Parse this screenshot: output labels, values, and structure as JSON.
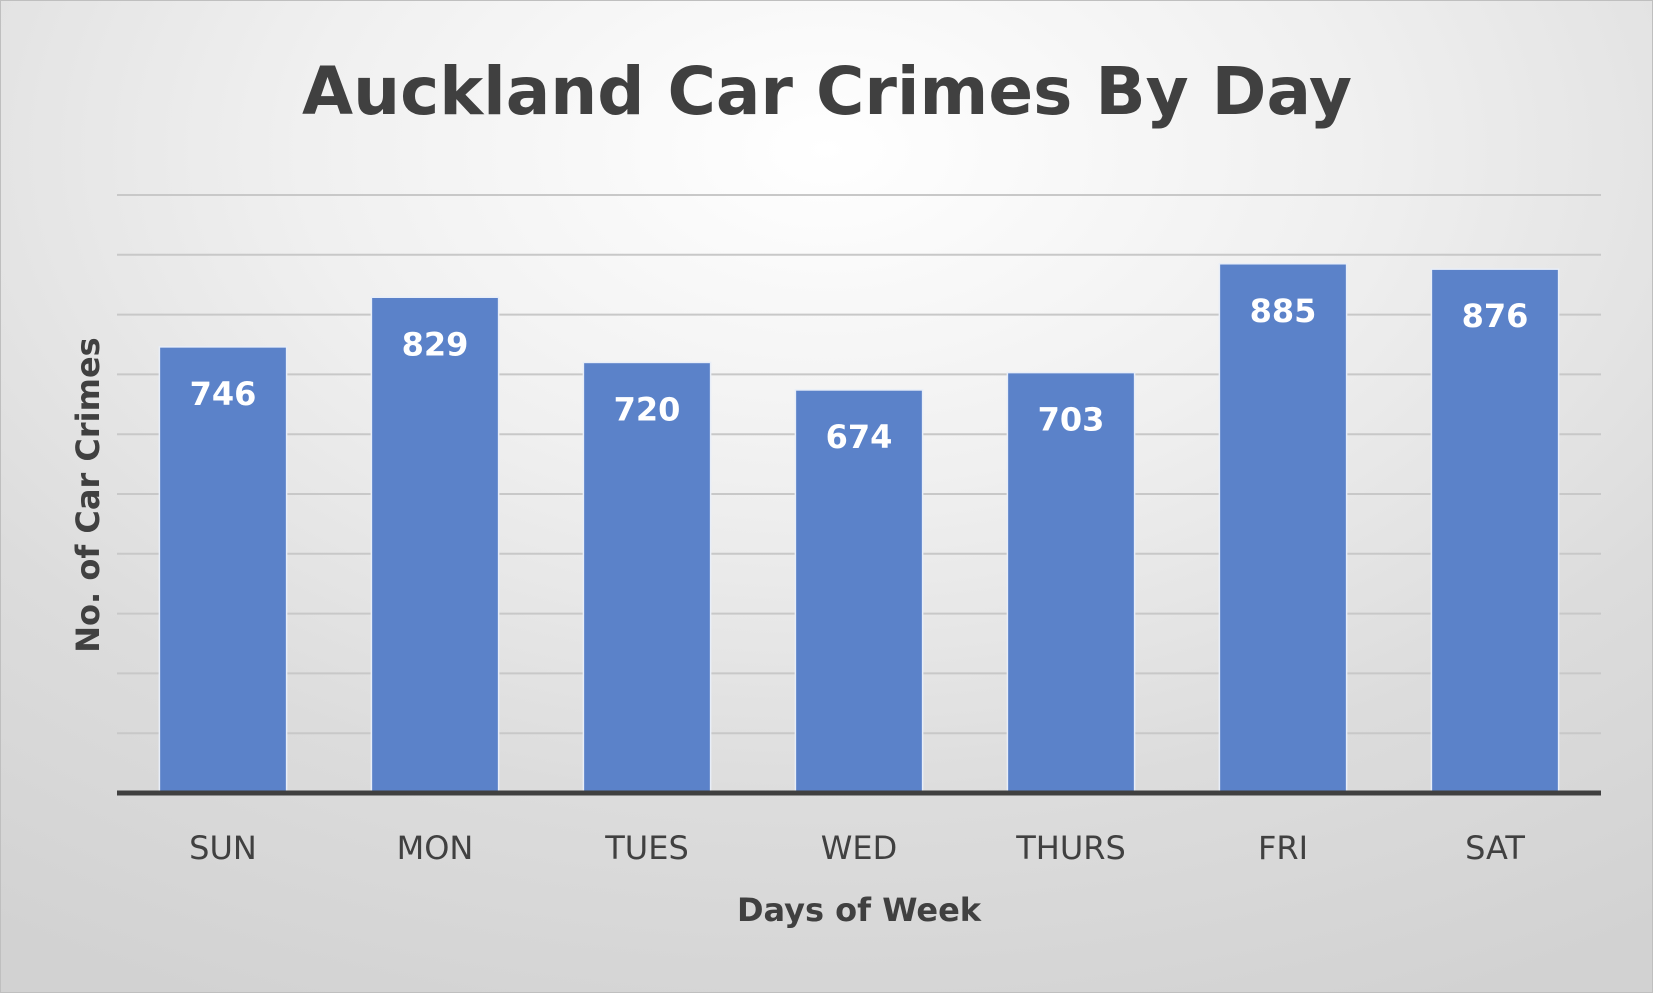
{
  "chart_data": {
    "type": "bar",
    "title": "Auckland Car Crimes By Day",
    "xlabel": "Days of Week",
    "ylabel": "No. of Car Crimes",
    "categories": [
      "SUN",
      "MON",
      "TUES",
      "WED",
      "THURS",
      "FRI",
      "SAT"
    ],
    "values": [
      746,
      829,
      720,
      674,
      703,
      885,
      876
    ],
    "ylim": [
      0,
      1000
    ],
    "grid_step": 100,
    "grid": true,
    "legend": "none",
    "bar_color": "#5b82c9"
  }
}
